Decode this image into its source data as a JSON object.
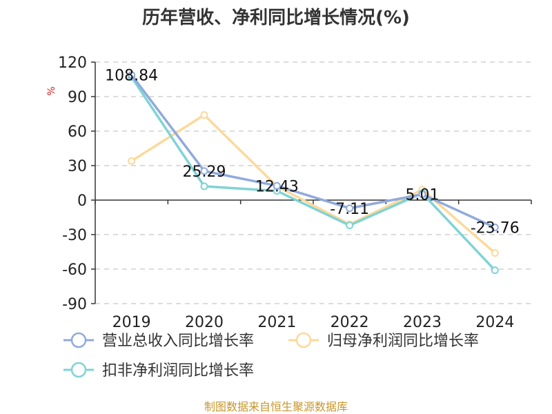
{
  "chart_data": {
    "type": "line",
    "title": "历年营收、净利同比增长情况(%)",
    "ylabel": "%",
    "categories": [
      "2019",
      "2020",
      "2021",
      "2022",
      "2023",
      "2024"
    ],
    "ylim": [
      -90,
      120
    ],
    "yticks": [
      "120",
      "90",
      "60",
      "30",
      "0",
      "-30",
      "-60",
      "-90"
    ],
    "ytick_values": [
      120,
      90,
      60,
      30,
      0,
      -30,
      -60,
      -90
    ],
    "grid": true,
    "legend_position": "bottom",
    "series": [
      {
        "name": "营业总收入同比增长率",
        "color": "#8faadc",
        "values": [
          108.84,
          25.29,
          12.43,
          -7.11,
          5.01,
          -23.76
        ],
        "labels": [
          "108.84",
          "25.29",
          "12.43",
          "-7.11",
          "5.01",
          "-23.76"
        ]
      },
      {
        "name": "归母净利润同比增长率",
        "color": "#fcd99a",
        "values": [
          34,
          74,
          12,
          -21,
          9,
          -46
        ]
      },
      {
        "name": "扣非净利润同比增长率",
        "color": "#7fd3d5",
        "values": [
          107,
          12,
          8,
          -22,
          6,
          -61
        ]
      }
    ]
  },
  "footer": {
    "source": "制图数据来自恒生聚源数据库"
  }
}
